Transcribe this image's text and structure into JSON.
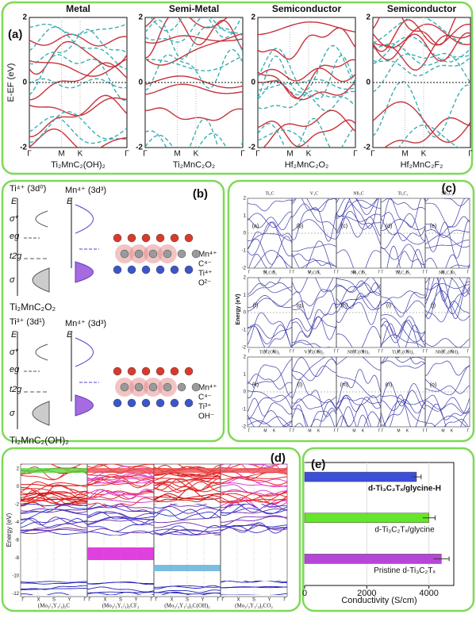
{
  "panels": {
    "a": {
      "label": "(a)",
      "y_label": "E-EF (eV)",
      "y_ticks": [
        "2",
        "0",
        "-2"
      ],
      "x_labels": [
        "Γ",
        "M",
        "K",
        "Γ"
      ],
      "plots": [
        {
          "title": "Metal",
          "compound": "Ti₂MnC₂(OH)₂"
        },
        {
          "title": "Semi-Metal",
          "compound": "Ti₂MnC₂O₂"
        },
        {
          "title": "Semiconductor",
          "compound": "Hf₂MnC₂O₂"
        },
        {
          "title": "Semiconductor",
          "compound": "Hf₂MnC₂F₂"
        }
      ]
    },
    "b": {
      "label": "(b)",
      "blocks": [
        {
          "ti": "Ti⁴⁺ (3d⁰)",
          "mn": "Mn⁴⁺ (3d³)",
          "energy": "E",
          "levels": [
            "σ*",
            "eg",
            "t2g",
            "σ"
          ],
          "compound": "Ti₂MnC₂O₂",
          "species": [
            "Mn⁴⁺",
            "C⁴⁻",
            "Ti⁴⁺",
            "O²⁻"
          ]
        },
        {
          "ti": "Ti³⁺ (3d¹)",
          "mn": "Mn⁴⁺ (3d³)",
          "energy": "E",
          "levels": [
            "σ*",
            "eg",
            "t2g",
            "σ"
          ],
          "compound": "Ti₂MnC₂(OH)₂",
          "species": [
            "Mn⁴⁺",
            "C⁴⁻",
            "Ti³⁺",
            "OH⁻"
          ]
        }
      ]
    },
    "c": {
      "label": "(c)",
      "y_label": "Energy (eV)",
      "y_ticks": [
        "2",
        "1",
        "0",
        "-1",
        "-2"
      ],
      "x_labels": [
        "Γ",
        "M",
        "K",
        "Γ"
      ],
      "rows": [
        [
          "Ti₂C",
          "V₂C",
          "Nb₂C",
          "Ti₃C₂",
          "Nb₃C₂"
        ],
        [
          "Ti₂CO₂",
          "V₂CO₂",
          "Nb₂CO₂",
          "Ti₃C₂O₂",
          "Nb₃C₂O₂"
        ],
        [
          "Ti₂C(OH)₂",
          "V₂C(OH)₂",
          "Nb₂C(OH)₂",
          "Ti₃C₂(OH)₂",
          "Nb₃C₂(OH)₂"
        ]
      ],
      "letters": [
        [
          "(a)",
          "(b)",
          "(c)",
          "(d)",
          "(e)"
        ],
        [
          "(f)",
          "(g)",
          "(h)",
          "(i)",
          "(j)"
        ],
        [
          "(k)",
          "(l)",
          "(m)",
          "(n)",
          "(o)"
        ]
      ]
    },
    "d": {
      "label": "(d)",
      "y_label": "Energy (eV)",
      "y_ticks": [
        "2",
        "0",
        "-2",
        "-4",
        "-6",
        "-8",
        "-10",
        "-12"
      ],
      "x_labels": [
        "Γ",
        "X",
        "S",
        "Y",
        "Γ"
      ],
      "plots": [
        "(Mo₂/₃Y₁/₃)₂C",
        "(Mo₂/₃Y₁/₃)₂CF₂",
        "(Mo₂/₃Y₁/₃)₂C(OH)₂",
        "(Mo₂/₃Y₁/₃)₂CO₂"
      ]
    }
  },
  "chart_data": {
    "type": "bar",
    "orientation": "horizontal",
    "panel_label": "(e)",
    "categories": [
      "d-Ti₃C₂Tₓ/glycine-H",
      "d-Ti₃C₂Tₓ/glycine",
      "Pristine d-Ti₃C₂Tₓ"
    ],
    "values": [
      3600,
      4000,
      4400
    ],
    "errors": [
      150,
      200,
      250
    ],
    "colors": [
      "#3b4fd8",
      "#66e62a",
      "#b646d8"
    ],
    "xlim": [
      0,
      4800
    ],
    "xticks": [
      0,
      2000,
      4000
    ],
    "x_label": "Conductivity (S/cm)",
    "grid": true
  }
}
